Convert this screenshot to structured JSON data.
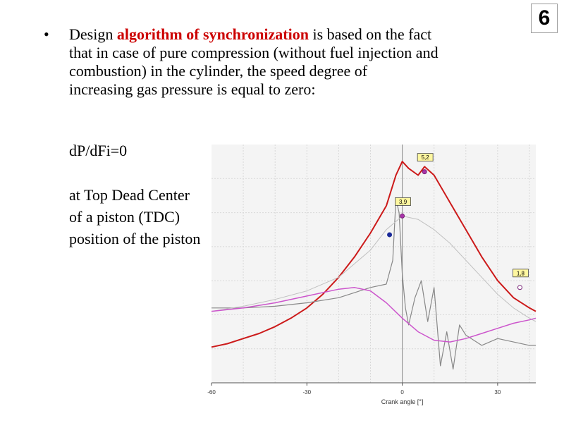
{
  "slide": {
    "number": "6"
  },
  "bullet": {
    "symbol": "•",
    "text_before": "Design ",
    "highlight": "algorithm of synchronization",
    "text_after_line1": " is based on the fact",
    "line2": "that in case of pure compression (without fuel injection and",
    "line3": "combustion) in the cylinder,  the speed degree of",
    "line4": "increasing gas pressure is equal to zero:",
    "formula": "dP/dFi=0",
    "tdc_line1": "at Top Dead Center",
    "tdc_line2": "of a piston (TDC)",
    "tdc_line3": "position of the piston"
  },
  "colors": {
    "highlight": "#cc0000",
    "pressure_curve": "#cc1a1a",
    "derivative_curve": "#888888",
    "compression_curve": "#c0c0c0",
    "magenta_curve": "#cc55cc",
    "chart_background": "#f4f4f4"
  },
  "chart_data": {
    "type": "line",
    "xlabel": "Crank angle [°]",
    "xlim": [
      -60,
      42
    ],
    "x_ticks": [
      "-60",
      "-30",
      "0",
      "30"
    ],
    "grid": true,
    "markers": [
      {
        "label": "5,2",
        "x": 7,
        "y": 5.2
      },
      {
        "label": "3,9",
        "x": 0,
        "y": 3.9
      },
      {
        "label": "1,8",
        "x": 37,
        "y": 1.8
      }
    ],
    "series": [
      {
        "x": [
          -60,
          -55,
          -50,
          -45,
          -40,
          -35,
          -30,
          -25,
          -20,
          -15,
          -10,
          -5,
          -2,
          0,
          2,
          5,
          7,
          10,
          15,
          20,
          25,
          30,
          35,
          40,
          42
        ],
        "values": [
          0.05,
          0.15,
          0.3,
          0.45,
          0.65,
          0.9,
          1.2,
          1.6,
          2.1,
          2.7,
          3.4,
          4.2,
          5.1,
          5.5,
          5.3,
          5.1,
          5.35,
          5.1,
          4.3,
          3.5,
          2.7,
          2.0,
          1.5,
          1.2,
          1.1
        ]
      },
      {
        "x": [
          -60,
          -50,
          -40,
          -30,
          -20,
          -10,
          -5,
          -3,
          -2,
          -1,
          0,
          1,
          2,
          4,
          6,
          8,
          10,
          12,
          14,
          16,
          18,
          20,
          25,
          30,
          35,
          40,
          42
        ],
        "values": [
          1.2,
          1.2,
          1.25,
          1.35,
          1.5,
          1.8,
          1.9,
          2.6,
          4.4,
          4.0,
          2.2,
          1.2,
          0.7,
          1.5,
          2.0,
          0.8,
          1.8,
          -0.5,
          0.5,
          -0.6,
          0.7,
          0.4,
          0.1,
          0.3,
          0.2,
          0.1,
          0.1
        ]
      },
      {
        "x": [
          -60,
          -50,
          -40,
          -30,
          -20,
          -10,
          -5,
          0,
          5,
          10,
          15,
          20,
          25,
          30,
          35,
          40,
          42
        ],
        "values": [
          1.1,
          1.25,
          1.45,
          1.7,
          2.1,
          2.9,
          3.5,
          3.9,
          3.8,
          3.5,
          3.1,
          2.6,
          2.1,
          1.6,
          1.2,
          0.9,
          0.8
        ]
      },
      {
        "x": [
          -60,
          -50,
          -40,
          -30,
          -20,
          -15,
          -10,
          -5,
          0,
          5,
          10,
          15,
          20,
          25,
          30,
          35,
          40,
          42
        ],
        "values": [
          1.1,
          1.2,
          1.35,
          1.55,
          1.75,
          1.8,
          1.7,
          1.35,
          0.9,
          0.5,
          0.25,
          0.2,
          0.3,
          0.45,
          0.6,
          0.75,
          0.85,
          0.9
        ]
      }
    ]
  }
}
